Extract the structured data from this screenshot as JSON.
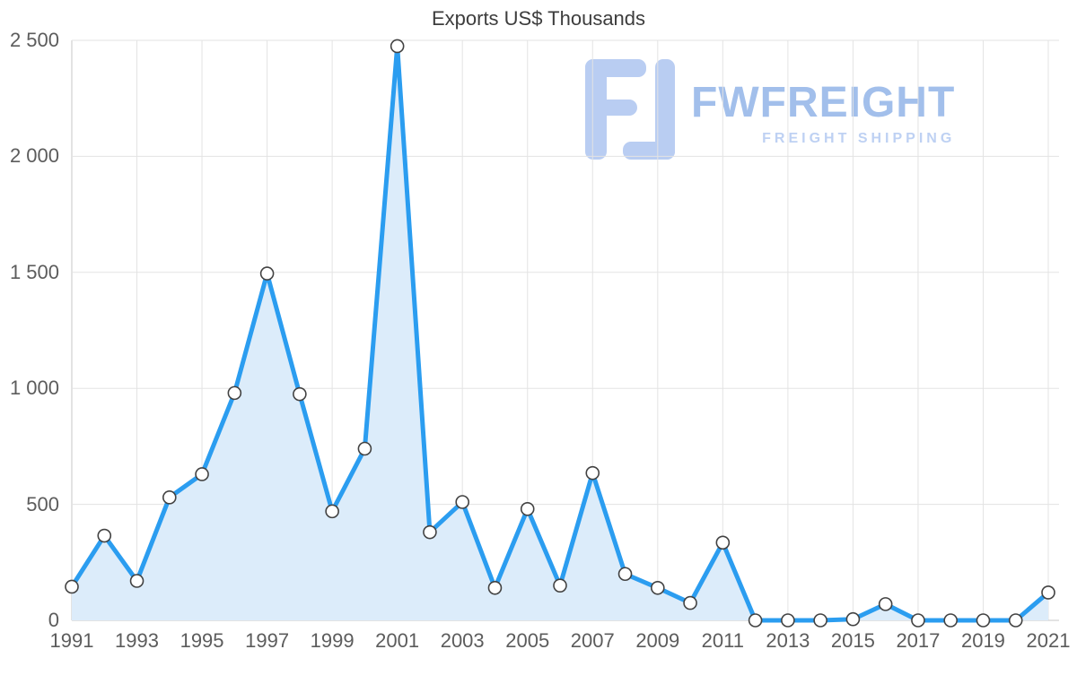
{
  "watermark": {
    "brand": "FWFREIGHT",
    "subtitle": "FREIGHT SHIPPING",
    "brand_color": "#a2bfeb",
    "subtitle_color": "#bed1f3",
    "glyph_color": "#b9cdf2"
  },
  "chart_data": {
    "type": "area",
    "title": "Exports US$ Thousands",
    "xlabel": "",
    "ylabel": "",
    "x": [
      1991,
      1992,
      1993,
      1994,
      1995,
      1996,
      1997,
      1998,
      1999,
      2000,
      2001,
      2002,
      2003,
      2004,
      2005,
      2006,
      2007,
      2008,
      2009,
      2010,
      2011,
      2012,
      2013,
      2014,
      2015,
      2016,
      2017,
      2018,
      2019,
      2020,
      2021
    ],
    "values": [
      145,
      365,
      170,
      530,
      630,
      980,
      1495,
      975,
      470,
      740,
      2475,
      380,
      510,
      140,
      480,
      150,
      635,
      200,
      140,
      75,
      335,
      0,
      0,
      0,
      5,
      70,
      0,
      0,
      0,
      0,
      120
    ],
    "ylim": [
      0,
      2500
    ],
    "yticks": [
      0,
      500,
      1000,
      1500,
      2000,
      2500
    ],
    "ytick_labels": [
      "0",
      "500",
      "1 000",
      "1 500",
      "2 000",
      "2 500"
    ],
    "xticks": [
      1991,
      1993,
      1995,
      1997,
      1999,
      2001,
      2003,
      2005,
      2007,
      2009,
      2011,
      2013,
      2015,
      2017,
      2019,
      2021
    ],
    "xtick_labels": [
      "1991",
      "1993",
      "1995",
      "1997",
      "1999",
      "2001",
      "2003",
      "2005",
      "2007",
      "2009",
      "2011",
      "2013",
      "2015",
      "2017",
      "2019",
      "2021"
    ],
    "grid": true,
    "legend": "none",
    "colors": {
      "line": "#2b9df0",
      "fill": "#dcecfa",
      "marker_fill": "#ffffff",
      "marker_stroke": "#424242",
      "grid": "#e3e3e3",
      "axis": "#c7c7c7"
    }
  }
}
